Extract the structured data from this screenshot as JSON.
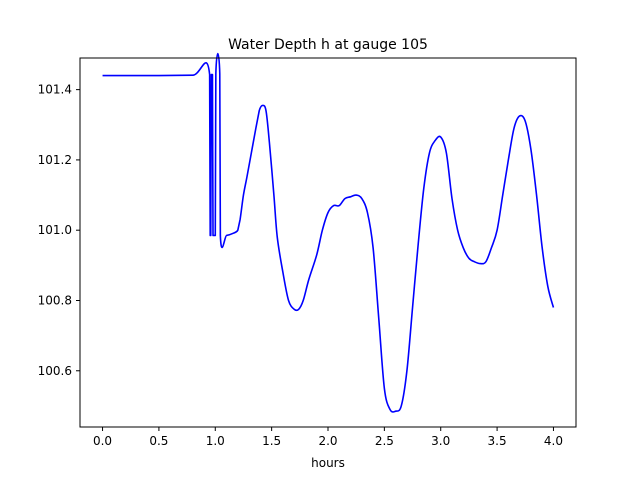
{
  "chart_data": {
    "type": "line",
    "title": "Water Depth h at gauge 105",
    "xlabel": "hours",
    "ylabel": "",
    "xlim": [
      -0.2,
      4.2
    ],
    "ylim": [
      100.44,
      101.49
    ],
    "grid": false,
    "x_ticks": [
      {
        "value": 0.0,
        "label": "0.0"
      },
      {
        "value": 0.5,
        "label": "0.5"
      },
      {
        "value": 1.0,
        "label": "1.0"
      },
      {
        "value": 1.5,
        "label": "1.5"
      },
      {
        "value": 2.0,
        "label": "2.0"
      },
      {
        "value": 2.5,
        "label": "2.5"
      },
      {
        "value": 3.0,
        "label": "3.0"
      },
      {
        "value": 3.5,
        "label": "3.5"
      },
      {
        "value": 4.0,
        "label": "4.0"
      }
    ],
    "y_ticks": [
      {
        "value": 100.6,
        "label": "100.6"
      },
      {
        "value": 100.8,
        "label": "100.8"
      },
      {
        "value": 101.0,
        "label": "101.0"
      },
      {
        "value": 101.2,
        "label": "101.2"
      },
      {
        "value": 101.4,
        "label": "101.4"
      }
    ],
    "series": [
      {
        "color": "#0000ff",
        "points": [
          [
            0.0,
            101.44
          ],
          [
            0.5,
            101.44
          ],
          [
            0.8,
            101.441
          ],
          [
            0.95,
            101.443
          ],
          [
            0.955,
            100.985
          ],
          [
            0.96,
            100.985
          ],
          [
            0.965,
            101.443
          ],
          [
            0.975,
            101.443
          ],
          [
            0.98,
            100.985
          ],
          [
            1.0,
            100.985
          ],
          [
            1.005,
            101.445
          ],
          [
            1.04,
            101.445
          ],
          [
            1.045,
            100.985
          ],
          [
            1.1,
            100.985
          ],
          [
            1.15,
            100.99
          ],
          [
            1.2,
            101.0
          ],
          [
            1.22,
            101.03
          ],
          [
            1.25,
            101.1
          ],
          [
            1.28,
            101.15
          ],
          [
            1.32,
            101.22
          ],
          [
            1.36,
            101.29
          ],
          [
            1.39,
            101.34
          ],
          [
            1.42,
            101.355
          ],
          [
            1.45,
            101.34
          ],
          [
            1.48,
            101.25
          ],
          [
            1.52,
            101.1
          ],
          [
            1.55,
            100.98
          ],
          [
            1.6,
            100.88
          ],
          [
            1.65,
            100.8
          ],
          [
            1.7,
            100.775
          ],
          [
            1.74,
            100.775
          ],
          [
            1.78,
            100.8
          ],
          [
            1.83,
            100.86
          ],
          [
            1.9,
            100.93
          ],
          [
            1.95,
            101.0
          ],
          [
            2.0,
            101.05
          ],
          [
            2.05,
            101.07
          ],
          [
            2.1,
            101.07
          ],
          [
            2.15,
            101.09
          ],
          [
            2.2,
            101.095
          ],
          [
            2.25,
            101.1
          ],
          [
            2.3,
            101.09
          ],
          [
            2.35,
            101.05
          ],
          [
            2.4,
            100.95
          ],
          [
            2.45,
            100.75
          ],
          [
            2.5,
            100.55
          ],
          [
            2.55,
            100.49
          ],
          [
            2.6,
            100.485
          ],
          [
            2.65,
            100.5
          ],
          [
            2.7,
            100.6
          ],
          [
            2.75,
            100.78
          ],
          [
            2.8,
            100.96
          ],
          [
            2.85,
            101.12
          ],
          [
            2.9,
            101.22
          ],
          [
            2.95,
            101.255
          ],
          [
            3.0,
            101.265
          ],
          [
            3.05,
            101.22
          ],
          [
            3.1,
            101.09
          ],
          [
            3.15,
            101.0
          ],
          [
            3.2,
            100.95
          ],
          [
            3.25,
            100.92
          ],
          [
            3.3,
            100.91
          ],
          [
            3.35,
            100.905
          ],
          [
            3.4,
            100.91
          ],
          [
            3.45,
            100.95
          ],
          [
            3.5,
            101.0
          ],
          [
            3.55,
            101.1
          ],
          [
            3.6,
            101.2
          ],
          [
            3.65,
            101.29
          ],
          [
            3.7,
            101.325
          ],
          [
            3.75,
            101.31
          ],
          [
            3.8,
            101.23
          ],
          [
            3.85,
            101.1
          ],
          [
            3.9,
            100.95
          ],
          [
            3.95,
            100.84
          ],
          [
            4.0,
            100.78
          ]
        ]
      }
    ]
  }
}
